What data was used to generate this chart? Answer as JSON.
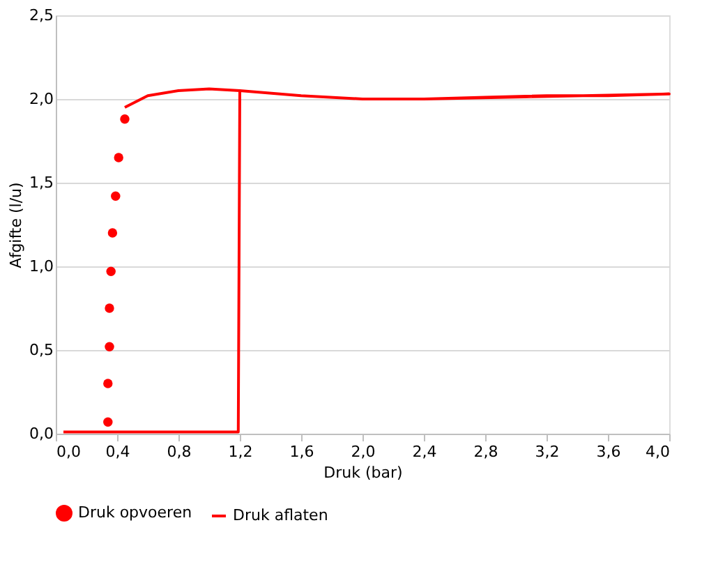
{
  "chart_data": {
    "type": "scatter",
    "xlabel": "Druk (bar)",
    "ylabel": "Afgifte (l/u)",
    "xlim": [
      0,
      4
    ],
    "ylim": [
      0,
      2.5
    ],
    "xticks": [
      {
        "value": 0,
        "label": "0,0"
      },
      {
        "value": 0.4,
        "label": "0,4"
      },
      {
        "value": 0.8,
        "label": "0,8"
      },
      {
        "value": 1.2,
        "label": "1,2"
      },
      {
        "value": 1.6,
        "label": "1,6"
      },
      {
        "value": 2.0,
        "label": "2,0"
      },
      {
        "value": 2.4,
        "label": "2,4"
      },
      {
        "value": 2.8,
        "label": "2,8"
      },
      {
        "value": 3.2,
        "label": "3,2"
      },
      {
        "value": 3.6,
        "label": "3,6"
      },
      {
        "value": 4.0,
        "label": "4,0"
      }
    ],
    "yticks": [
      {
        "value": 0,
        "label": "0,0"
      },
      {
        "value": 0.5,
        "label": "0,5"
      },
      {
        "value": 1.0,
        "label": "1,0"
      },
      {
        "value": 1.5,
        "label": "1,5"
      },
      {
        "value": 2.0,
        "label": "2,0"
      },
      {
        "value": 2.5,
        "label": "2,5"
      }
    ],
    "grid": "y",
    "legend": "bottom",
    "series": [
      {
        "name": "Druk opvoeren",
        "marker": "circle",
        "color": "#ff0000",
        "x": [
          0.34,
          0.34,
          0.35,
          0.35,
          0.36,
          0.37,
          0.39,
          0.41,
          0.45
        ],
        "values": [
          0.07,
          0.3,
          0.52,
          0.75,
          0.97,
          1.2,
          1.42,
          1.65,
          1.88
        ]
      },
      {
        "name": "Druk aflaten",
        "type": "line",
        "line_style": "solid",
        "color": "#ff0000",
        "x": [
          0.45,
          0.6,
          0.8,
          1.0,
          1.2,
          1.6,
          2.0,
          2.4,
          2.8,
          3.2,
          3.6,
          4.0,
          2.4,
          2.0,
          1.6,
          1.2,
          1.19,
          0.05
        ],
        "values": [
          1.95,
          2.02,
          2.05,
          2.06,
          2.05,
          2.02,
          2.0,
          2.0,
          2.01,
          2.02,
          2.02,
          2.03,
          2.0,
          2.0,
          2.02,
          2.05,
          0.01,
          0.01
        ]
      }
    ]
  }
}
